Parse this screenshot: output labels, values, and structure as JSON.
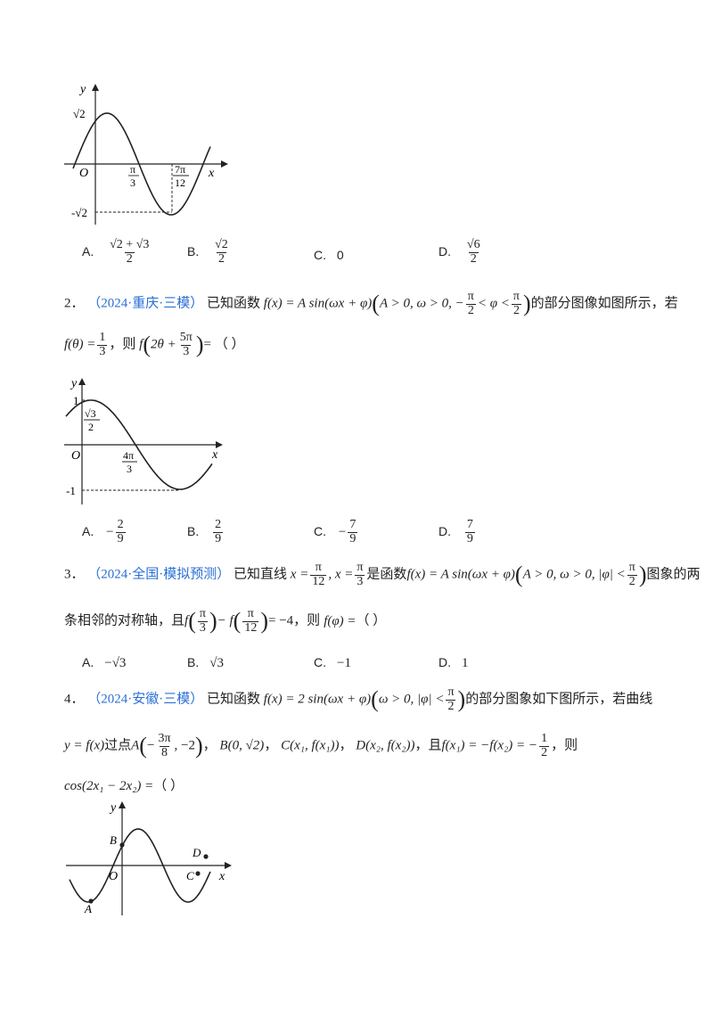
{
  "q1": {
    "graph": {
      "y_label": "y",
      "x_label": "x",
      "origin": "O",
      "y_top": "√2",
      "y_bottom": "-√2",
      "tick1_num": "π",
      "tick1_den": "3",
      "tick2_num": "7π",
      "tick2_den": "12"
    },
    "options": [
      {
        "letter": "A.",
        "num": "√2 + √3",
        "den": "2"
      },
      {
        "letter": "B.",
        "num": "√2",
        "den": "2"
      },
      {
        "letter": "C.",
        "text": "0"
      },
      {
        "letter": "D.",
        "num": "√6",
        "den": "2"
      }
    ]
  },
  "q2": {
    "number": "2．",
    "source": "（2024·重庆·三模）",
    "stem_1": "已知函数",
    "formula_1": "f(x) = A sin(ωx + φ)",
    "cond_1": "A > 0, ω > 0, −",
    "cond_pi": "π",
    "cond_2": "2",
    "cond_3": "< φ <",
    "stem_2": "的部分图像如图所示，若",
    "given_1": "f(θ) =",
    "given_num": "1",
    "given_den": "3",
    "given_2": "，则",
    "ask_1": "f",
    "ask_2": "2θ +",
    "ask_num": "5π",
    "ask_den": "3",
    "ask_3": "= （    ）",
    "graph": {
      "y_label": "y",
      "x_label": "x",
      "origin": "O",
      "y_top": "1",
      "y_bottom": "-1",
      "y_mid_num": "√3",
      "y_mid_den": "2",
      "tick_num": "4π",
      "tick_den": "3"
    },
    "options": [
      {
        "letter": "A.",
        "sign": "−",
        "num": "2",
        "den": "9"
      },
      {
        "letter": "B.",
        "sign": "",
        "num": "2",
        "den": "9"
      },
      {
        "letter": "C.",
        "sign": "−",
        "num": "7",
        "den": "9"
      },
      {
        "letter": "D.",
        "sign": "",
        "num": "7",
        "den": "9"
      }
    ]
  },
  "q3": {
    "number": "3．",
    "source": "（2024·全国·模拟预测）",
    "stem_1": "已知直线",
    "line_1": "x =",
    "l1_num": "π",
    "l1_den": "12",
    "line_2": ", x =",
    "l2_num": "π",
    "l2_den": "3",
    "stem_2": "是函数",
    "formula": "f(x) = A sin(ωx + φ)",
    "cond": "A > 0, ω > 0, |φ| <",
    "cond_num": "π",
    "cond_den": "2",
    "stem_3": "图象的两",
    "stem_4": "条相邻的对称轴，且",
    "eq_1": "f",
    "eq_a_num": "π",
    "eq_a_den": "3",
    "eq_2": "− f",
    "eq_b_num": "π",
    "eq_b_den": "12",
    "eq_3": "= −4",
    "stem_5": "，则",
    "ask": "f(φ) =",
    "blank": "（    ）",
    "options": [
      {
        "letter": "A.",
        "text": "−√3"
      },
      {
        "letter": "B.",
        "text": "√3"
      },
      {
        "letter": "C.",
        "text": "−1"
      },
      {
        "letter": "D.",
        "text": "1"
      }
    ]
  },
  "q4": {
    "number": "4．",
    "source": "（2024·安徽·三模）",
    "stem_1": "已知函数",
    "formula": "f(x) = 2 sin(ωx + φ)",
    "cond": "ω > 0, |φ| <",
    "cond_num": "π",
    "cond_den": "2",
    "stem_2": "的部分图象如下图所示，若曲线",
    "curve": "y = f(x)",
    "pass": "过点",
    "pt_a_1": "A",
    "pt_a_2": "−",
    "pt_a_num": "3π",
    "pt_a_den": "8",
    "pt_a_3": ", −2",
    "pt_b": "B(0, √2)",
    "pt_c": "C(x₁, f(x₁))",
    "pt_d": "D(x₂, f(x₂))",
    "rel_1": "，且",
    "rel_2": "f(x₁) = −f(x₂) = −",
    "rel_num": "1",
    "rel_den": "2",
    "rel_3": "，则",
    "ask": "cos(2x₁ − 2x₂) =",
    "blank": "（    ）",
    "graph": {
      "y_label": "y",
      "x_label": "x",
      "origin": "O",
      "pt_a": "A",
      "pt_b": "B",
      "pt_c": "C",
      "pt_d": "D"
    }
  }
}
